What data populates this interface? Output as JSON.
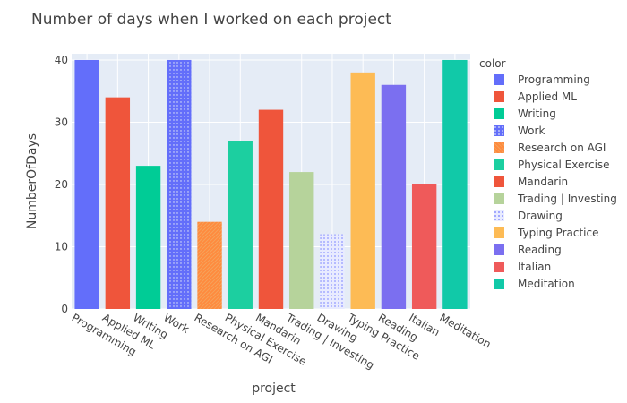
{
  "chart_data": {
    "type": "bar",
    "title": "Number of days when I worked on each project",
    "xlabel": "project",
    "ylabel": "NumberOfDays",
    "ylim": [
      0,
      41
    ],
    "yticks": [
      0,
      10,
      20,
      30,
      40
    ],
    "grid": true,
    "legend_title": "color",
    "legend_position": "right",
    "categories": [
      "Programming",
      "Applied ML",
      "Writing",
      "Work",
      "Research on AGI",
      "Physical Exercise",
      "Mandarin",
      "Trading | Investing",
      "Drawing",
      "Typing Practice",
      "Reading",
      "Italian",
      "Meditation"
    ],
    "series": [
      {
        "name": "Programming",
        "category": "Programming",
        "value": 40,
        "color": "#636efa",
        "pattern": "solid"
      },
      {
        "name": "Applied ML",
        "category": "Applied ML",
        "value": 34,
        "color": "#ef553b",
        "pattern": "solid"
      },
      {
        "name": "Writing",
        "category": "Writing",
        "value": 23,
        "color": "#00cc96",
        "pattern": "solid"
      },
      {
        "name": "Work",
        "category": "Work",
        "value": 40,
        "color": "#636efa",
        "pattern": "dots"
      },
      {
        "name": "Research on AGI",
        "category": "Research on AGI",
        "value": 14,
        "color": "#ff8a3d",
        "pattern": "hatch"
      },
      {
        "name": "Physical Exercise",
        "category": "Physical Exercise",
        "value": 27,
        "color": "#1ccfa0",
        "pattern": "solid"
      },
      {
        "name": "Mandarin",
        "category": "Mandarin",
        "value": 32,
        "color": "#ef553b",
        "pattern": "solid"
      },
      {
        "name": "Trading | Investing",
        "category": "Trading | Investing",
        "value": 22,
        "color": "#b6d39b",
        "pattern": "solid"
      },
      {
        "name": "Drawing",
        "category": "Drawing",
        "value": 12,
        "color": "#8f97ff",
        "pattern": "dotted-light"
      },
      {
        "name": "Typing Practice",
        "category": "Typing Practice",
        "value": 38,
        "color": "#fdbb55",
        "pattern": "solid"
      },
      {
        "name": "Reading",
        "category": "Reading",
        "value": 36,
        "color": "#7b6ff0",
        "pattern": "solid"
      },
      {
        "name": "Italian",
        "category": "Italian",
        "value": 20,
        "color": "#ef5a5a",
        "pattern": "solid"
      },
      {
        "name": "Meditation",
        "category": "Meditation",
        "value": 40,
        "color": "#11c9a8",
        "pattern": "solid"
      }
    ],
    "plot_background": "#e5ecf6"
  }
}
